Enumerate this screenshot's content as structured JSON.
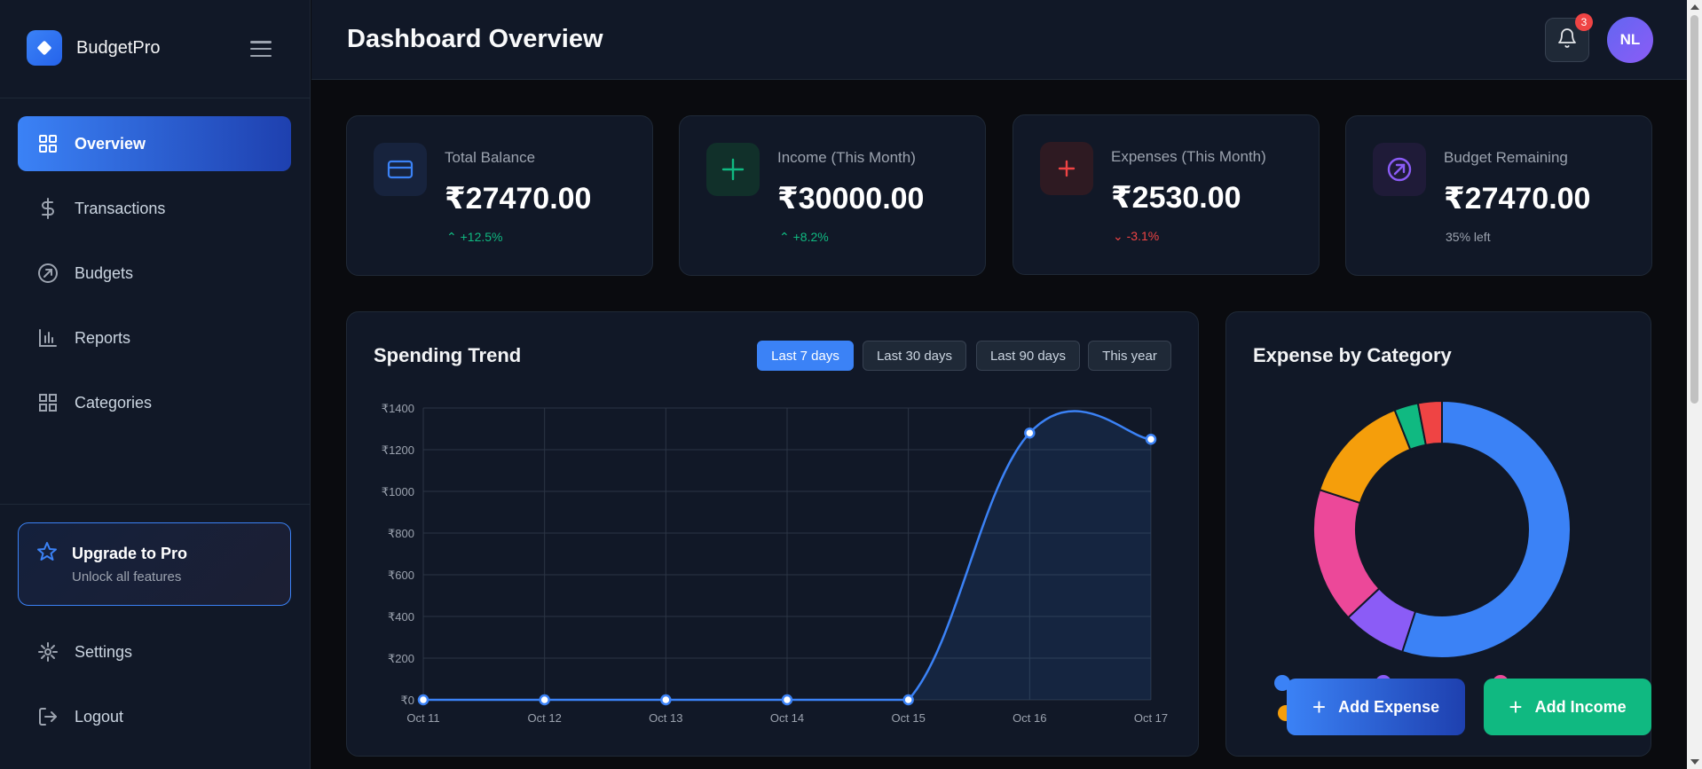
{
  "app": {
    "name": "BudgetPro"
  },
  "sidebar": {
    "items": [
      {
        "label": "Overview",
        "icon": "grid-icon",
        "active": true
      },
      {
        "label": "Transactions",
        "icon": "dollar-icon",
        "active": false
      },
      {
        "label": "Budgets",
        "icon": "target-icon",
        "active": false
      },
      {
        "label": "Reports",
        "icon": "bar-chart-icon",
        "active": false
      },
      {
        "label": "Categories",
        "icon": "grid-icon",
        "active": false
      }
    ],
    "upgrade": {
      "title": "Upgrade to Pro",
      "subtitle": "Unlock all features"
    },
    "bottom_items": [
      {
        "label": "Settings",
        "icon": "gear-icon"
      },
      {
        "label": "Logout",
        "icon": "logout-icon"
      }
    ]
  },
  "header": {
    "title": "Dashboard Overview",
    "notification_count": "3",
    "avatar_initials": "NL"
  },
  "stats": [
    {
      "title": "Total Balance",
      "value": "₹27470.00",
      "change": "+12.5%",
      "trend": "up",
      "icon": "card-icon",
      "color": "#3b82f6"
    },
    {
      "title": "Income (This Month)",
      "value": "₹30000.00",
      "change": "+8.2%",
      "trend": "up",
      "icon": "plus-icon",
      "color": "#10b981"
    },
    {
      "title": "Expenses (This Month)",
      "value": "₹2530.00",
      "change": "-3.1%",
      "trend": "down",
      "icon": "plus-icon",
      "color": "#ef4444"
    },
    {
      "title": "Budget Remaining",
      "value": "₹27470.00",
      "change": "35% left",
      "trend": "neutral",
      "icon": "target-icon",
      "color": "#8b5cf6"
    }
  ],
  "trend": {
    "title": "Spending Trend",
    "ranges": [
      "Last 7 days",
      "Last 30 days",
      "Last 90 days",
      "This year"
    ],
    "active_range": "Last 7 days"
  },
  "chart_data": [
    {
      "type": "line",
      "title": "Spending Trend",
      "x": [
        "Oct 11",
        "Oct 12",
        "Oct 13",
        "Oct 14",
        "Oct 15",
        "Oct 16",
        "Oct 17"
      ],
      "series": [
        {
          "values": [
            0,
            0,
            0,
            0,
            0,
            1280,
            1250
          ],
          "color": "#3b82f6"
        }
      ],
      "y_ticks": [
        "₹0",
        "₹200",
        "₹400",
        "₹600",
        "₹800",
        "₹1000",
        "₹1200",
        "₹1400"
      ],
      "ylim": [
        0,
        1400
      ],
      "grid": true,
      "smooth": true,
      "filled": true
    },
    {
      "type": "pie",
      "title": "Expense by Category",
      "donut": true,
      "slices": [
        {
          "value": 55,
          "color": "#3b82f6"
        },
        {
          "value": 8,
          "color": "#8b5cf6"
        },
        {
          "value": 17,
          "color": "#ec4899"
        },
        {
          "value": 14,
          "color": "#f59e0b"
        },
        {
          "value": 3,
          "color": "#10b981"
        },
        {
          "value": 3,
          "color": "#ef4444"
        }
      ]
    }
  ],
  "category_panel": {
    "title": "Expense by Category"
  },
  "actions": {
    "add_expense": "Add Expense",
    "add_income": "Add Income"
  }
}
